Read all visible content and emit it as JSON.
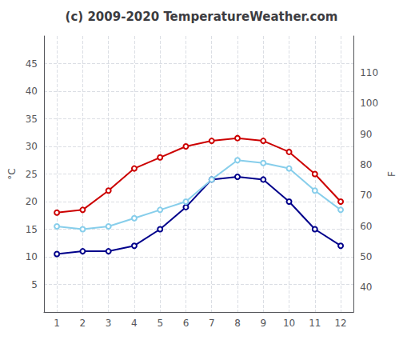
{
  "chart_data": {
    "type": "line",
    "title": "(c) 2009-2020 TemperatureWeather.com",
    "x": [
      1,
      2,
      3,
      4,
      5,
      6,
      7,
      8,
      9,
      10,
      11,
      12
    ],
    "series": [
      {
        "color": "#cc0000",
        "values": [
          18,
          18.5,
          22,
          26,
          28,
          30,
          31,
          31.5,
          31,
          29,
          25,
          20
        ]
      },
      {
        "color": "#00008b",
        "values": [
          10.5,
          11,
          11,
          12,
          15,
          19,
          24,
          24.5,
          24,
          20,
          15,
          12
        ]
      },
      {
        "color": "#87ceeb",
        "values": [
          15.5,
          15,
          15.5,
          17,
          18.5,
          20,
          24,
          27.5,
          27,
          26,
          22,
          18.5
        ]
      }
    ],
    "xlim": [
      0.5,
      12.5
    ],
    "xticks": [
      1,
      2,
      3,
      4,
      5,
      6,
      7,
      8,
      9,
      10,
      11,
      12
    ],
    "ylabel": "°C",
    "ylim": [
      0,
      50
    ],
    "yticks": [
      5,
      10,
      15,
      20,
      25,
      30,
      35,
      40,
      45
    ],
    "y2label": "F",
    "y2lim": [
      32,
      122
    ],
    "y2ticks": [
      40,
      50,
      60,
      70,
      80,
      90,
      100,
      110
    ],
    "grid": true
  }
}
